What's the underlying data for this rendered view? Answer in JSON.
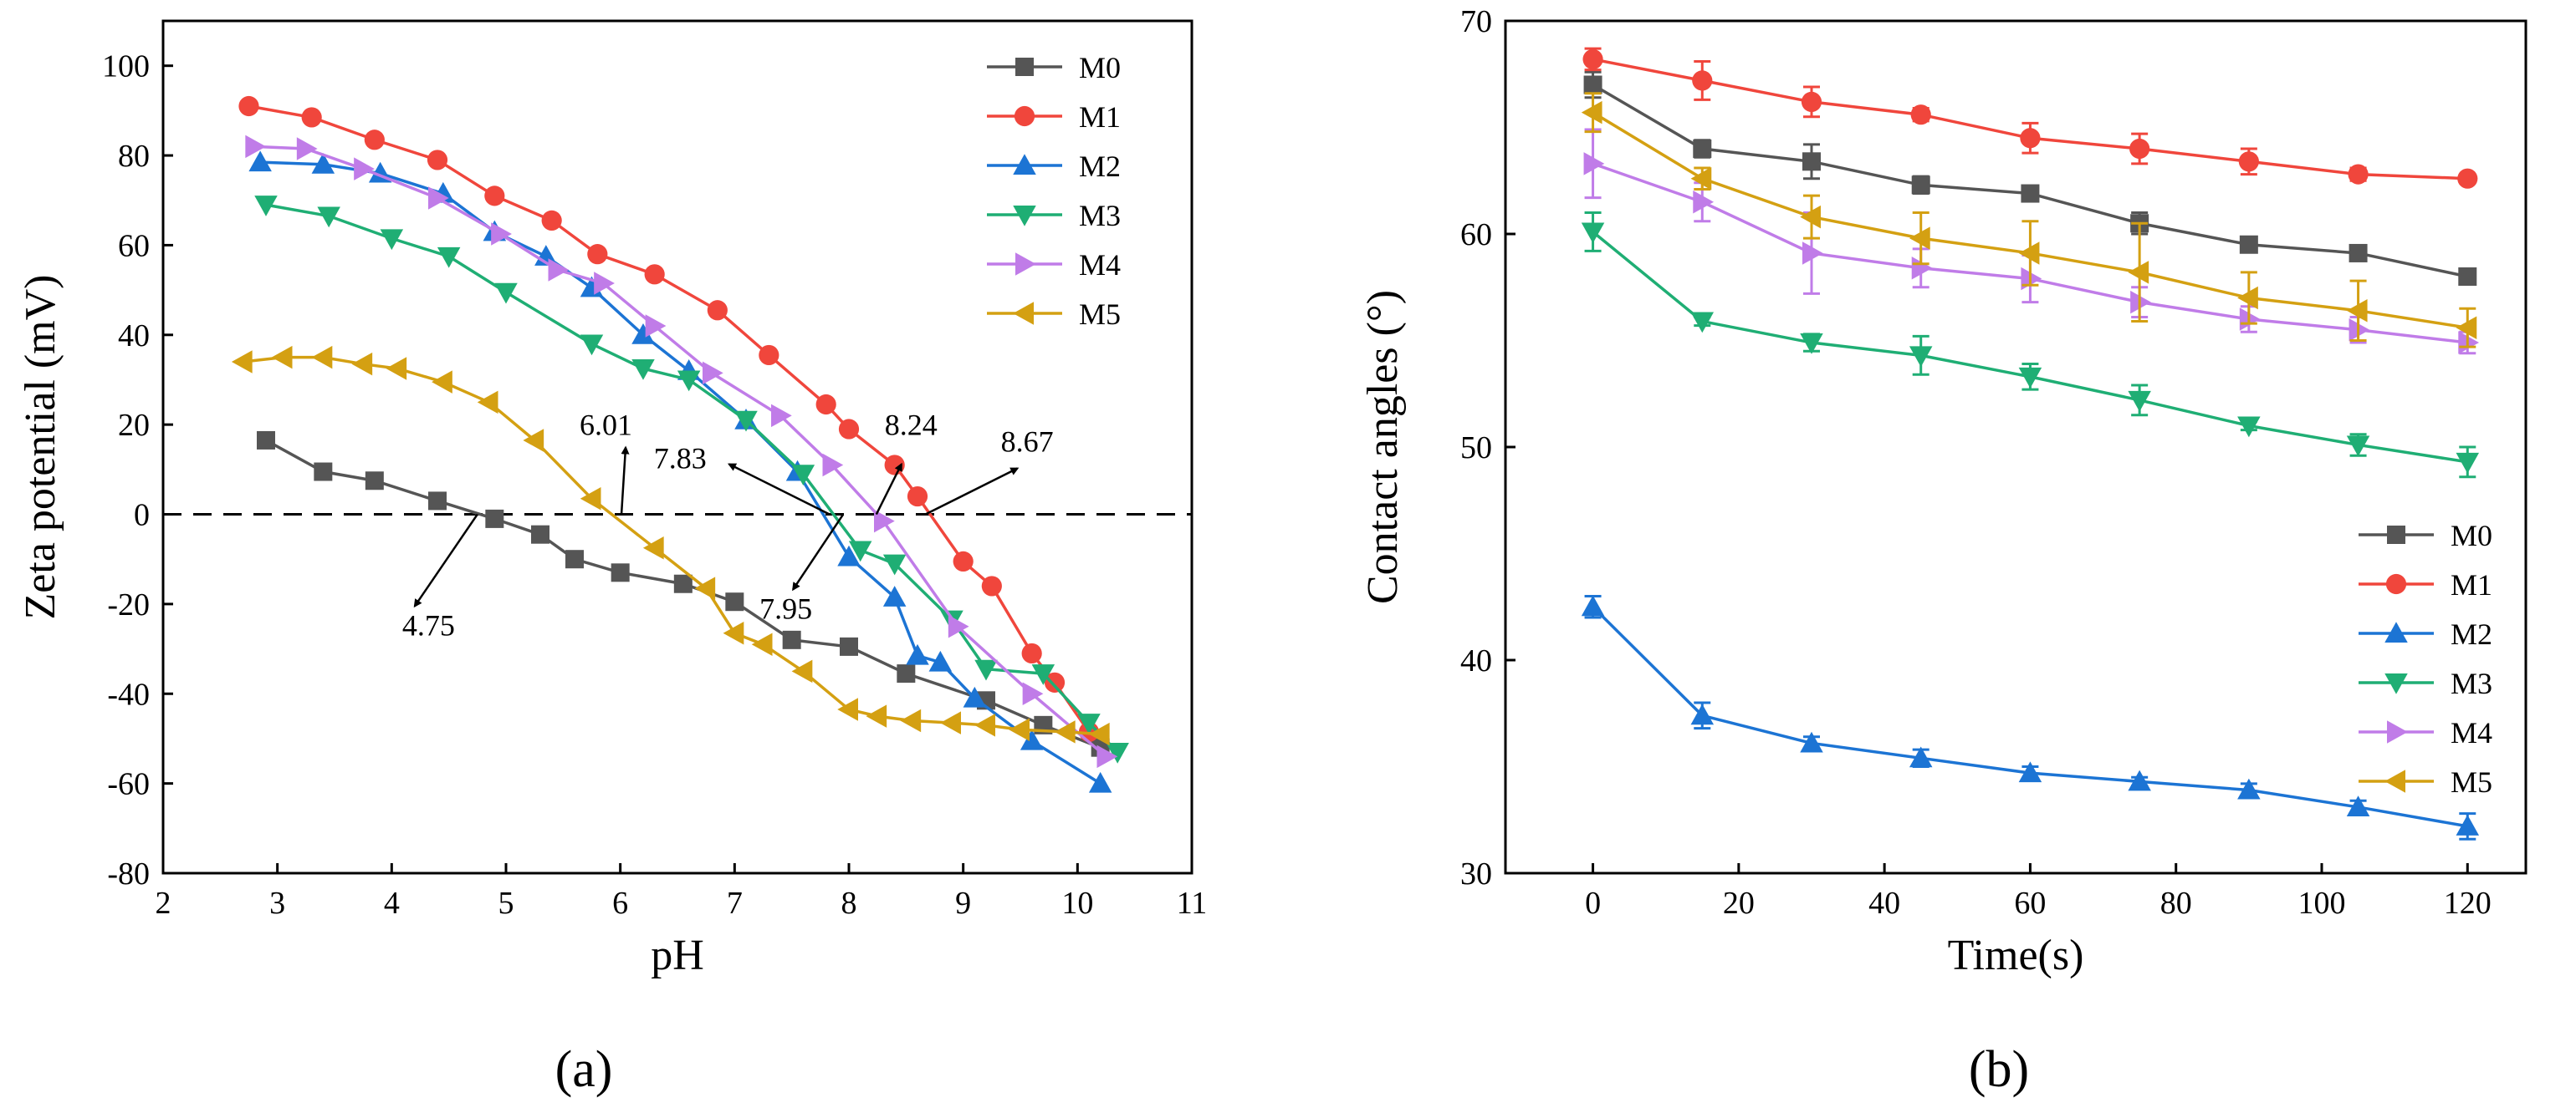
{
  "colors": {
    "M0": "#555555",
    "M1": "#f0463c",
    "M2": "#1c74d4",
    "M3": "#1fae74",
    "M4": "#c07ce8",
    "M5": "#d4a012",
    "axis": "#000000"
  },
  "panel_labels": {
    "a": "(a)",
    "b": "(b)"
  },
  "chart_data": [
    {
      "type": "line",
      "panel": "a",
      "title": "",
      "xlabel": "pH",
      "ylabel": "Zeta potential (mV)",
      "xlim": [
        2,
        11
      ],
      "ylim": [
        -80,
        110
      ],
      "xticks": [
        2,
        3,
        4,
        5,
        6,
        7,
        8,
        9,
        10,
        11
      ],
      "yticks": [
        -80,
        -60,
        -40,
        -20,
        0,
        20,
        40,
        60,
        80,
        100
      ],
      "legend_position": "top-right",
      "reference_line": {
        "y": 0,
        "style": "dashed"
      },
      "series": [
        {
          "name": "M0",
          "marker": "square",
          "x": [
            2.9,
            3.4,
            3.85,
            4.4,
            4.9,
            5.3,
            5.6,
            6.0,
            6.55,
            7.0,
            7.5,
            8.0,
            8.5,
            9.2,
            9.7,
            10.2
          ],
          "y": [
            16.5,
            9.5,
            7.5,
            3,
            -1,
            -4.5,
            -10,
            -13,
            -15.5,
            -19.5,
            -28,
            -29.5,
            -35.5,
            -41.5,
            -47,
            -52
          ]
        },
        {
          "name": "M1",
          "marker": "circle",
          "x": [
            2.75,
            3.3,
            3.85,
            4.4,
            4.9,
            5.4,
            5.8,
            6.3,
            6.85,
            7.3,
            7.8,
            8.0,
            8.4,
            8.6,
            9.0,
            9.25,
            9.6,
            9.8,
            10.1
          ],
          "y": [
            91,
            88.5,
            83.5,
            79,
            71,
            65.5,
            58,
            53.5,
            45.5,
            35.5,
            24.5,
            19,
            11,
            4,
            -10.5,
            -16,
            -31,
            -37.5,
            -48.5
          ]
        },
        {
          "name": "M2",
          "marker": "triangle-up",
          "x": [
            2.85,
            3.4,
            3.9,
            4.45,
            4.9,
            5.35,
            5.75,
            6.2,
            6.6,
            7.1,
            7.55,
            8.0,
            8.4,
            8.6,
            8.8,
            9.1,
            9.6,
            10.2
          ],
          "y": [
            78.5,
            78,
            76,
            71.5,
            63,
            57.5,
            50.5,
            40,
            32,
            21,
            9.5,
            -9.5,
            -18.5,
            -31.5,
            -33,
            -41,
            -50.5,
            -60
          ]
        },
        {
          "name": "M3",
          "marker": "triangle-down",
          "x": [
            2.9,
            3.45,
            4.0,
            4.5,
            5.0,
            5.75,
            6.2,
            6.6,
            7.1,
            7.6,
            8.1,
            8.4,
            8.9,
            9.2,
            9.7,
            10.1,
            10.35
          ],
          "y": [
            69,
            66.5,
            61.5,
            57.5,
            49.5,
            38,
            32.5,
            30,
            21,
            9,
            -8,
            -11,
            -23.5,
            -34.5,
            -35.5,
            -46.5,
            -53
          ]
        },
        {
          "name": "M4",
          "marker": "triangle-right",
          "x": [
            2.8,
            3.25,
            3.75,
            4.4,
            4.95,
            5.45,
            5.85,
            6.3,
            6.8,
            7.4,
            7.85,
            8.3,
            8.95,
            9.6,
            10.25
          ],
          "y": [
            82,
            81.5,
            77,
            70.5,
            62.5,
            54.5,
            51.5,
            42,
            31.5,
            22,
            11,
            -1.5,
            -25,
            -40,
            -54
          ]
        },
        {
          "name": "M5",
          "marker": "triangle-left",
          "x": [
            2.7,
            3.05,
            3.4,
            3.75,
            4.05,
            4.45,
            4.85,
            5.25,
            5.75,
            6.3,
            6.75,
            7.0,
            7.25,
            7.6,
            8.0,
            8.25,
            8.55,
            8.9,
            9.2,
            9.5,
            9.9,
            10.2
          ],
          "y": [
            34,
            35,
            35,
            33.5,
            32.5,
            29.5,
            25,
            16.5,
            3.5,
            -7.5,
            -16.5,
            -26.5,
            -29,
            -35,
            -43.5,
            -45,
            -46,
            -46.5,
            -47,
            -48,
            -48.5,
            -49
          ]
        }
      ],
      "annotations": [
        {
          "text": "4.75",
          "x": 4.75,
          "y": 0
        },
        {
          "text": "6.01",
          "x": 6.01,
          "y": 0
        },
        {
          "text": "7.83",
          "x": 7.83,
          "y": 0
        },
        {
          "text": "7.95",
          "x": 7.95,
          "y": 0
        },
        {
          "text": "8.24",
          "x": 8.24,
          "y": 0
        },
        {
          "text": "8.67",
          "x": 8.67,
          "y": 0
        }
      ]
    },
    {
      "type": "line",
      "panel": "b",
      "title": "",
      "xlabel": "Time(s)",
      "ylabel": "Contact angles (°)",
      "xlim": [
        -12,
        128
      ],
      "ylim": [
        30,
        70
      ],
      "xticks": [
        0,
        20,
        40,
        60,
        80,
        100,
        120
      ],
      "yticks": [
        30,
        40,
        50,
        60,
        70
      ],
      "legend_position": "bottom-right",
      "error_bars": true,
      "series": [
        {
          "name": "M0",
          "marker": "square",
          "x": [
            0,
            15,
            30,
            45,
            60,
            75,
            90,
            105,
            120
          ],
          "y": [
            67,
            64,
            63.4,
            62.3,
            61.9,
            60.5,
            59.5,
            59.1,
            58
          ],
          "err": [
            0.6,
            0.4,
            0.8,
            0.4,
            0.3,
            0.5,
            0.3,
            0.3,
            0.3
          ]
        },
        {
          "name": "M1",
          "marker": "circle",
          "x": [
            0,
            15,
            30,
            45,
            60,
            75,
            90,
            105,
            120
          ],
          "y": [
            68.2,
            67.2,
            66.2,
            65.6,
            64.5,
            64,
            63.4,
            62.8,
            62.6
          ],
          "err": [
            0.5,
            0.9,
            0.7,
            0.3,
            0.7,
            0.7,
            0.6,
            0.3,
            0.2
          ]
        },
        {
          "name": "M2",
          "marker": "triangle-up",
          "x": [
            0,
            15,
            30,
            45,
            60,
            75,
            90,
            105,
            120
          ],
          "y": [
            42.5,
            37.4,
            36.1,
            35.4,
            34.7,
            34.3,
            33.9,
            33.1,
            32.2
          ],
          "err": [
            0.5,
            0.6,
            0.3,
            0.4,
            0.3,
            0.2,
            0.3,
            0.3,
            0.6
          ]
        },
        {
          "name": "M3",
          "marker": "triangle-down",
          "x": [
            0,
            15,
            30,
            45,
            60,
            75,
            90,
            105,
            120
          ],
          "y": [
            60.1,
            55.9,
            54.9,
            54.3,
            53.3,
            52.2,
            51,
            50.1,
            49.3
          ],
          "err": [
            0.9,
            0.2,
            0.4,
            0.9,
            0.6,
            0.7,
            0.2,
            0.5,
            0.7
          ]
        },
        {
          "name": "M4",
          "marker": "triangle-right",
          "x": [
            0,
            15,
            30,
            45,
            60,
            75,
            90,
            105,
            120
          ],
          "y": [
            63.3,
            61.5,
            59.1,
            58.4,
            57.9,
            56.8,
            56,
            55.5,
            54.9
          ],
          "err": [
            1.6,
            0.9,
            1.9,
            0.9,
            1.1,
            0.7,
            0.6,
            0.6,
            0.5
          ]
        },
        {
          "name": "M5",
          "marker": "triangle-left",
          "x": [
            0,
            15,
            30,
            45,
            60,
            75,
            90,
            105,
            120
          ],
          "y": [
            65.7,
            62.6,
            60.8,
            59.8,
            59.1,
            58.2,
            57,
            56.4,
            55.6
          ],
          "err": [
            0.9,
            0.5,
            1,
            1.2,
            1.5,
            2.3,
            1.2,
            1.4,
            0.9
          ]
        }
      ]
    }
  ]
}
